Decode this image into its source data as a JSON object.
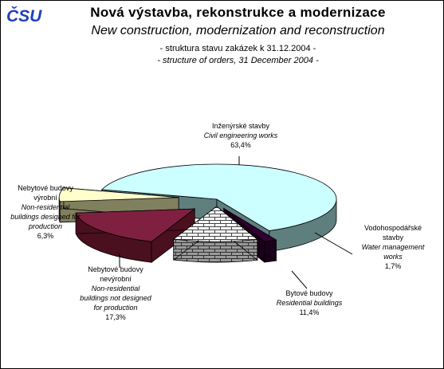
{
  "logo": {
    "text": "ČSU",
    "color": "#1f3fbf"
  },
  "header": {
    "title_cs": "Nová výstavba, rekonstrukce a  modernizace",
    "title_en": "New construction, modernization and reconstruction",
    "subtitle_cs": "- struktura stavu zakázek k 31.12.2004 -",
    "subtitle_en": "- structure of orders, 31 December 2004 -"
  },
  "chart_data": {
    "type": "pie",
    "title": "Nová výstavba, rekonstrukce a  modernizace",
    "subtitle": "New construction, modernization and reconstruction",
    "legend": "none",
    "unit": "%",
    "slices": [
      {
        "label_cs": "Inženýrské stavby",
        "label_en": "Civil engineering works",
        "value": 63.4,
        "value_label": "63,4%",
        "color": "#ccffff",
        "side_color": "#5f7f7f"
      },
      {
        "label_cs": "Vodohospodářské stavby",
        "label_en": "Water management works",
        "value": 1.7,
        "value_label": "1,7%",
        "color": "#330033",
        "side_color": "#1a001a"
      },
      {
        "label_cs": "Bytové budovy",
        "label_en": "Residential buildings",
        "value": 11.4,
        "value_label": "11,4%",
        "color": "#ffffff",
        "side_color": "#808080",
        "pattern": "brick"
      },
      {
        "label_cs": "Nebytové budovy nevýrobní",
        "label_en": "Non-residential buildings not designed for production",
        "value": 17.3,
        "value_label": "17,3%",
        "color": "#802040",
        "side_color": "#4a1020"
      },
      {
        "label_cs": "Nebytové budovy výrobní",
        "label_en": "Non-residential buildings designed for production",
        "value": 6.3,
        "value_label": "6,3%",
        "color": "#ffffcc",
        "side_color": "#80805f"
      }
    ]
  },
  "labels": {
    "civil": {
      "l1": "Inženýrské stavby",
      "l2": "Civil engineering works",
      "v": "63,4%"
    },
    "water": {
      "l1": "Vodohospodářské",
      "l2": "stavby",
      "l3": "Water management",
      "l4": "works",
      "v": "1,7%"
    },
    "resid": {
      "l1": "Bytové budovy",
      "l2": "Residential buildings",
      "v": "11,4%"
    },
    "nonprod": {
      "l1": "Nebytové budovy",
      "l2": "nevýrobní",
      "l3": "Non-residential",
      "l4": "buildings not designed",
      "l5": "for production",
      "v": "17,3%"
    },
    "prod": {
      "l1": "Nebytové budovy",
      "l2": "výrobní",
      "l3": "Non-residential",
      "l4": "buildings designed for",
      "l5": "production",
      "v": "6,3%"
    }
  }
}
